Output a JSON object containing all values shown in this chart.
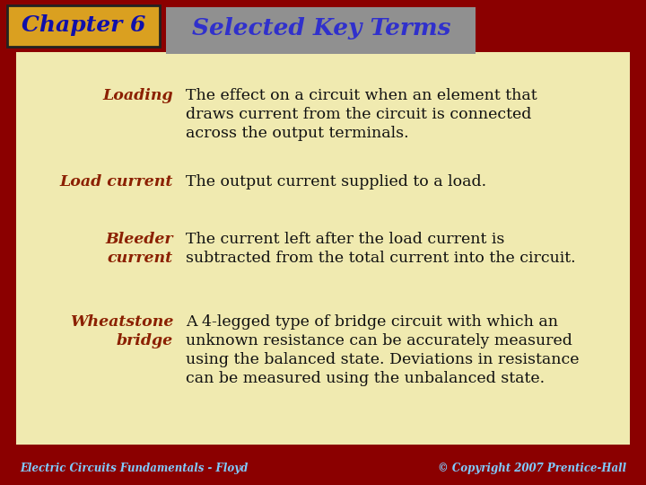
{
  "title": "Selected Key Terms",
  "chapter": "Chapter 6",
  "background_outer": "#8B0000",
  "background_inner": "#F0EAB0",
  "title_box_color": "#909090",
  "title_text_color": "#3030CC",
  "chapter_box_color": "#DAA020",
  "chapter_text_color": "#1010AA",
  "term_color": "#8B2000",
  "definition_color": "#111111",
  "footer_text_color": "#80CCFF",
  "footer_left": "Electric Circuits Fundamentals - Floyd",
  "footer_right": "© Copyright 2007 Prentice-Hall",
  "entries": [
    {
      "term_lines": [
        "Loading"
      ],
      "def_lines": [
        "The effect on a circuit when an element that",
        "draws current from the circuit is connected",
        "across the output terminals."
      ]
    },
    {
      "term_lines": [
        "Load current"
      ],
      "def_lines": [
        "The output current supplied to a load."
      ]
    },
    {
      "term_lines": [
        "Bleeder",
        "current"
      ],
      "def_lines": [
        "The current left after the load current is",
        "subtracted from the total current into the circuit."
      ]
    },
    {
      "term_lines": [
        "Wheatstone",
        "bridge"
      ],
      "def_lines": [
        "A 4-legged type of bridge circuit with which an",
        "unknown resistance can be accurately measured",
        "using the balanced state. Deviations in resistance",
        "can be measured using the unbalanced state."
      ]
    }
  ]
}
